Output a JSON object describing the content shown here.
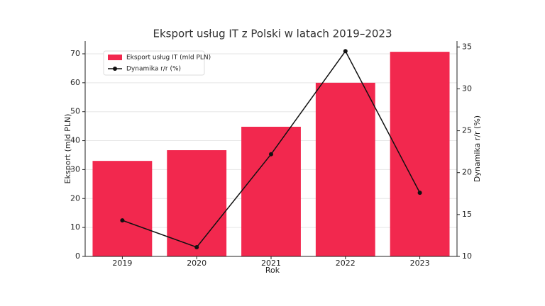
{
  "chart_data": {
    "type": "combo",
    "title": "Eksport usług IT z Polski w latach 2019–2023",
    "x_label": "Rok",
    "y_label": "Eksport (mld PLN)",
    "y2_label": "Dynamika r/r (%)",
    "categories": [
      "2019",
      "2020",
      "2021",
      "2022",
      "2023"
    ],
    "series": [
      {
        "name": "Eksport usług IT (mld PLN)",
        "type": "bar",
        "color": "#f2284e",
        "values": [
          33.0,
          36.7,
          44.8,
          60.0,
          70.7
        ]
      },
      {
        "name": "Dynamika r/r (%)",
        "type": "line",
        "axis": "y2",
        "color": "#111111",
        "values": [
          14.3,
          11.1,
          22.2,
          34.5,
          17.6
        ]
      }
    ],
    "ylim": [
      0,
      74.4
    ],
    "yticks": [
      0,
      10,
      20,
      30,
      40,
      50,
      60,
      70
    ],
    "y2lim": [
      10,
      35.7
    ],
    "y2ticks": [
      10,
      15,
      20,
      25,
      30,
      35
    ],
    "grid": true,
    "legend": "upper left"
  }
}
